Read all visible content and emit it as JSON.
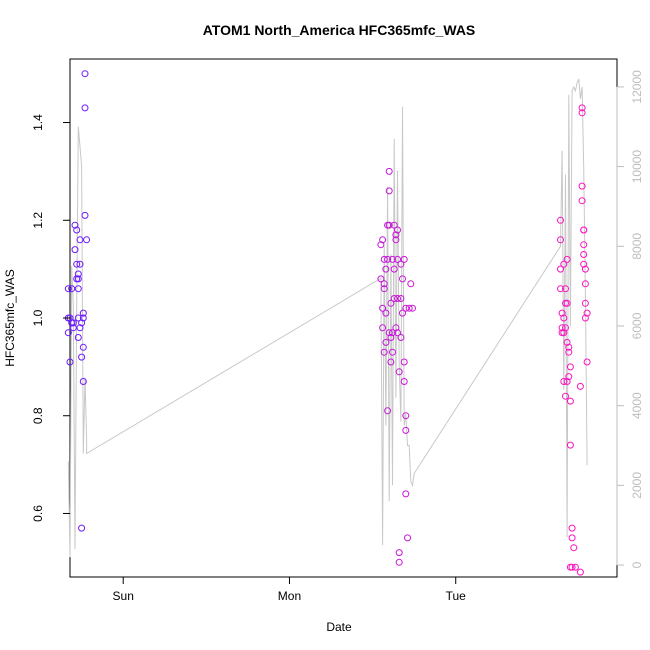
{
  "chart_data": {
    "type": "scatter",
    "title": "ATOM1 North_America HFC365mfc_WAS",
    "xlabel": "Date",
    "ylabel": "HFC365mfc_WAS",
    "xlim": [
      -0.32,
      2.97
    ],
    "ylim": [
      0.47,
      1.53
    ],
    "x_ticks": [
      {
        "label": "Sun",
        "value": 0
      },
      {
        "label": "Mon",
        "value": 1
      },
      {
        "label": "Tue",
        "value": 2
      }
    ],
    "y_ticks": [
      {
        "label": "0.6",
        "value": 0.6
      },
      {
        "label": "0.8",
        "value": 0.8
      },
      {
        "label": "1.0",
        "value": 1.0
      },
      {
        "label": "1.2",
        "value": 1.2
      },
      {
        "label": "1.4",
        "value": 1.4
      }
    ],
    "y2_ticks": [
      {
        "label": "0",
        "value": 0
      },
      {
        "label": "2000",
        "value": 2000
      },
      {
        "label": "4000",
        "value": 4000
      },
      {
        "label": "6000",
        "value": 6000
      },
      {
        "label": "8000",
        "value": 8000
      },
      {
        "label": "10000",
        "value": 10000
      },
      {
        "label": "12000",
        "value": 12000
      }
    ],
    "y2lim": [
      -300,
      12700
    ],
    "grid": false,
    "legend": "none",
    "colors": {
      "line": "#c8c8c8",
      "point_start": "#6a1bff",
      "point_end": "#ff14c0",
      "right_axis": "#bdbdbd"
    },
    "points": [
      {
        "x": -0.33,
        "y": 1.06
      },
      {
        "x": -0.33,
        "y": 1.0
      },
      {
        "x": -0.33,
        "y": 0.97
      },
      {
        "x": -0.32,
        "y": 0.91
      },
      {
        "x": -0.32,
        "y": 1.0
      },
      {
        "x": -0.31,
        "y": 1.06
      },
      {
        "x": -0.31,
        "y": 0.99
      },
      {
        "x": -0.3,
        "y": 0.98
      },
      {
        "x": -0.3,
        "y": 0.99
      },
      {
        "x": -0.29,
        "y": 1.14
      },
      {
        "x": -0.29,
        "y": 1.19
      },
      {
        "x": -0.28,
        "y": 1.18
      },
      {
        "x": -0.28,
        "y": 1.11
      },
      {
        "x": -0.28,
        "y": 1.08
      },
      {
        "x": -0.27,
        "y": 1.09
      },
      {
        "x": -0.27,
        "y": 1.08
      },
      {
        "x": -0.27,
        "y": 1.06
      },
      {
        "x": -0.27,
        "y": 1.0
      },
      {
        "x": -0.27,
        "y": 0.96
      },
      {
        "x": -0.26,
        "y": 0.98
      },
      {
        "x": -0.26,
        "y": 1.16
      },
      {
        "x": -0.26,
        "y": 1.11
      },
      {
        "x": -0.25,
        "y": 0.99
      },
      {
        "x": -0.25,
        "y": 0.92
      },
      {
        "x": -0.25,
        "y": 0.57
      },
      {
        "x": -0.24,
        "y": 1.0
      },
      {
        "x": -0.24,
        "y": 0.87
      },
      {
        "x": -0.24,
        "y": 1.01
      },
      {
        "x": -0.24,
        "y": 0.94
      },
      {
        "x": -0.23,
        "y": 1.5
      },
      {
        "x": -0.23,
        "y": 1.43
      },
      {
        "x": -0.23,
        "y": 1.21
      },
      {
        "x": -0.22,
        "y": 1.16
      },
      {
        "x": 1.55,
        "y": 1.08
      },
      {
        "x": 1.55,
        "y": 1.15
      },
      {
        "x": 1.56,
        "y": 1.02
      },
      {
        "x": 1.56,
        "y": 0.98
      },
      {
        "x": 1.56,
        "y": 1.16
      },
      {
        "x": 1.57,
        "y": 1.12
      },
      {
        "x": 1.57,
        "y": 1.07
      },
      {
        "x": 1.57,
        "y": 0.93
      },
      {
        "x": 1.57,
        "y": 1.06
      },
      {
        "x": 1.58,
        "y": 1.1
      },
      {
        "x": 1.58,
        "y": 1.01
      },
      {
        "x": 1.58,
        "y": 0.95
      },
      {
        "x": 1.59,
        "y": 1.19
      },
      {
        "x": 1.59,
        "y": 1.12
      },
      {
        "x": 1.59,
        "y": 0.81
      },
      {
        "x": 1.6,
        "y": 1.3
      },
      {
        "x": 1.6,
        "y": 1.26
      },
      {
        "x": 1.6,
        "y": 1.19
      },
      {
        "x": 1.61,
        "y": 1.03
      },
      {
        "x": 1.61,
        "y": 0.96
      },
      {
        "x": 1.61,
        "y": 0.91
      },
      {
        "x": 1.62,
        "y": 1.12
      },
      {
        "x": 1.62,
        "y": 0.97
      },
      {
        "x": 1.62,
        "y": 0.93
      },
      {
        "x": 1.63,
        "y": 1.19
      },
      {
        "x": 1.63,
        "y": 1.1
      },
      {
        "x": 1.63,
        "y": 1.04
      },
      {
        "x": 1.64,
        "y": 1.17
      },
      {
        "x": 1.64,
        "y": 1.16
      },
      {
        "x": 1.64,
        "y": 0.98
      },
      {
        "x": 1.65,
        "y": 1.18
      },
      {
        "x": 1.65,
        "y": 1.12
      },
      {
        "x": 1.65,
        "y": 1.04
      },
      {
        "x": 1.65,
        "y": 0.97
      },
      {
        "x": 1.66,
        "y": 0.89
      },
      {
        "x": 1.66,
        "y": 0.52
      },
      {
        "x": 1.66,
        "y": 0.5
      },
      {
        "x": 1.67,
        "y": 1.11
      },
      {
        "x": 1.67,
        "y": 1.04
      },
      {
        "x": 1.68,
        "y": 1.08
      },
      {
        "x": 1.68,
        "y": 1.01
      },
      {
        "x": 1.69,
        "y": 1.12
      },
      {
        "x": 1.69,
        "y": 0.91
      },
      {
        "x": 1.69,
        "y": 0.87
      },
      {
        "x": 1.7,
        "y": 1.02
      },
      {
        "x": 1.7,
        "y": 0.8
      },
      {
        "x": 1.7,
        "y": 0.77
      },
      {
        "x": 1.7,
        "y": 0.64
      },
      {
        "x": 1.71,
        "y": 0.55
      },
      {
        "x": 1.72,
        "y": 1.02
      },
      {
        "x": 1.73,
        "y": 1.07
      },
      {
        "x": 1.74,
        "y": 1.02
      },
      {
        "x": 1.6,
        "y": 0.97
      },
      {
        "x": 1.67,
        "y": 0.96
      },
      {
        "x": 2.63,
        "y": 1.2
      },
      {
        "x": 2.63,
        "y": 1.16
      },
      {
        "x": 2.63,
        "y": 1.1
      },
      {
        "x": 2.63,
        "y": 1.06
      },
      {
        "x": 2.64,
        "y": 1.01
      },
      {
        "x": 2.64,
        "y": 0.97
      },
      {
        "x": 2.64,
        "y": 0.98
      },
      {
        "x": 2.65,
        "y": 1.11
      },
      {
        "x": 2.65,
        "y": 1.0
      },
      {
        "x": 2.65,
        "y": 0.97
      },
      {
        "x": 2.65,
        "y": 0.87
      },
      {
        "x": 2.66,
        "y": 1.06
      },
      {
        "x": 2.66,
        "y": 1.03
      },
      {
        "x": 2.66,
        "y": 0.98
      },
      {
        "x": 2.66,
        "y": 0.84
      },
      {
        "x": 2.67,
        "y": 1.12
      },
      {
        "x": 2.67,
        "y": 1.03
      },
      {
        "x": 2.67,
        "y": 0.95
      },
      {
        "x": 2.67,
        "y": 0.87
      },
      {
        "x": 2.68,
        "y": 0.94
      },
      {
        "x": 2.68,
        "y": 0.93
      },
      {
        "x": 2.69,
        "y": 0.9
      },
      {
        "x": 2.69,
        "y": 0.83
      },
      {
        "x": 2.69,
        "y": 0.74
      },
      {
        "x": 2.7,
        "y": 0.57
      },
      {
        "x": 2.7,
        "y": 0.55
      },
      {
        "x": 2.7,
        "y": 0.49
      },
      {
        "x": 2.71,
        "y": 0.53
      },
      {
        "x": 2.69,
        "y": 0.49
      },
      {
        "x": 2.68,
        "y": 0.88
      },
      {
        "x": 2.72,
        "y": 0.49
      },
      {
        "x": 2.75,
        "y": 0.48
      },
      {
        "x": 2.76,
        "y": 1.43
      },
      {
        "x": 2.76,
        "y": 1.42
      },
      {
        "x": 2.76,
        "y": 1.27
      },
      {
        "x": 2.76,
        "y": 1.24
      },
      {
        "x": 2.77,
        "y": 1.18
      },
      {
        "x": 2.77,
        "y": 1.15
      },
      {
        "x": 2.77,
        "y": 1.13
      },
      {
        "x": 2.77,
        "y": 1.11
      },
      {
        "x": 2.78,
        "y": 1.1
      },
      {
        "x": 2.78,
        "y": 1.07
      },
      {
        "x": 2.78,
        "y": 1.03
      },
      {
        "x": 2.78,
        "y": 1.0
      },
      {
        "x": 2.79,
        "y": 1.01
      },
      {
        "x": 2.79,
        "y": 0.91
      },
      {
        "x": 2.75,
        "y": 0.86
      },
      {
        "x": 2.77,
        "y": 1.18
      }
    ],
    "secondary_line": {
      "x": [
        -0.33,
        -0.32,
        -0.31,
        -0.3,
        -0.29,
        -0.28,
        -0.27,
        -0.26,
        -0.25,
        -0.24,
        -0.23,
        -0.22,
        -0.22,
        1.55,
        1.56,
        1.57,
        1.58,
        1.59,
        1.6,
        1.61,
        1.62,
        1.63,
        1.64,
        1.65,
        1.66,
        1.67,
        1.68,
        1.69,
        1.7,
        1.71,
        1.72,
        1.73,
        1.74,
        1.75,
        2.63,
        2.64,
        2.65,
        2.66,
        2.67,
        2.68,
        2.69,
        2.7,
        2.71,
        2.72,
        2.73,
        2.74,
        2.75,
        2.76,
        2.77,
        2.78,
        2.79
      ],
      "y": [
        2600,
        200,
        7500,
        6500,
        400,
        6500,
        11000,
        10500,
        10000,
        2800,
        4700,
        3200,
        2800,
        7200,
        500,
        8000,
        3500,
        9500,
        1600,
        7800,
        2000,
        10700,
        4200,
        9900,
        5000,
        3600,
        11500,
        3500,
        3800,
        3000,
        3000,
        2100,
        2000,
        2300,
        8000,
        10400,
        4400,
        9800,
        700,
        11800,
        6000,
        11900,
        12000,
        11900,
        12100,
        12200,
        11700,
        12000,
        10000,
        6800,
        2500
      ]
    }
  }
}
